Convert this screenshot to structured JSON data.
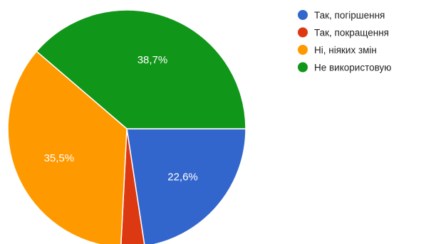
{
  "chart_data": {
    "type": "pie",
    "categories": [
      "Так, погіршення",
      "Так, покращення",
      "Ні, ніяких змін",
      "Не використовую"
    ],
    "values": [
      22.6,
      3.2,
      35.5,
      38.7
    ],
    "data_labels": [
      "22,6%",
      "",
      "35,5%",
      "38,7%"
    ],
    "colors": [
      "#3366cc",
      "#dc3912",
      "#ff9900",
      "#109618"
    ],
    "legend_position": "right"
  }
}
